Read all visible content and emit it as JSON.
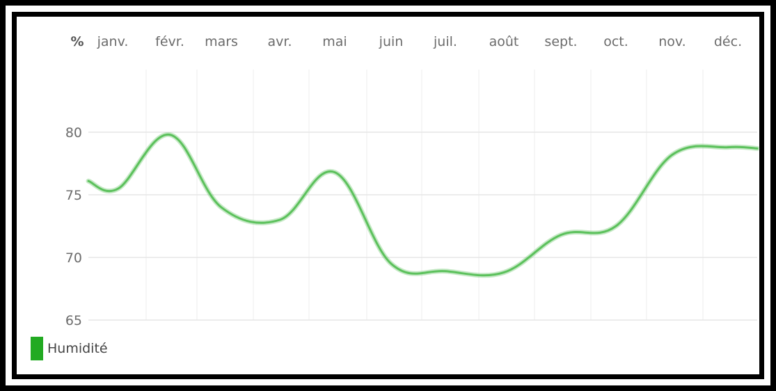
{
  "chart_data": {
    "type": "line",
    "unit_label": "%",
    "categories": [
      "janv.",
      "févr.",
      "mars",
      "avr.",
      "mai",
      "juin",
      "juil.",
      "août",
      "sept.",
      "oct.",
      "nov.",
      "déc."
    ],
    "series": [
      {
        "name": "Humidité",
        "values": [
          75.5,
          79.8,
          74,
          73,
          76.8,
          69.5,
          68.9,
          68.8,
          71.8,
          72.5,
          78.2,
          78.8
        ],
        "color": "#5cc15c"
      }
    ],
    "y_ticks": [
      65,
      70,
      75,
      80
    ],
    "ylim": [
      65,
      85
    ],
    "grid": true,
    "legend_position": "bottom-left",
    "legend_swatch_color": "#22aa22"
  }
}
